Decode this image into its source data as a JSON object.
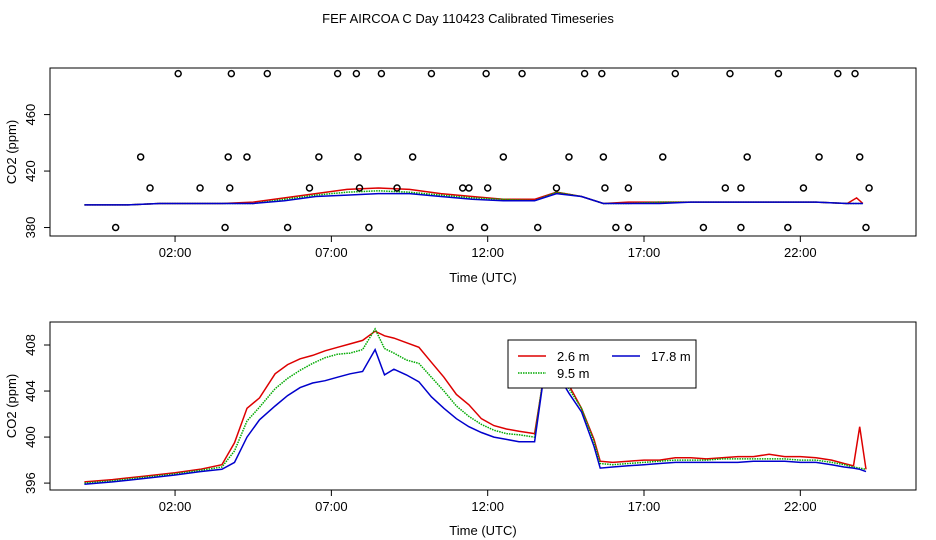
{
  "title": "FEF AIRCOA C  Day 110423  Calibrated Timeseries",
  "chart_data": [
    {
      "type": "scatter+line",
      "xlabel": "Time (UTC)",
      "ylabel": "CO2 (ppm)",
      "xlim": [
        -2.0,
        25.7
      ],
      "ylim": [
        374,
        493
      ],
      "x_ticks": [
        2,
        7,
        12,
        17,
        22
      ],
      "x_tick_labels": [
        "02:00",
        "07:00",
        "12:00",
        "17:00",
        "22:00"
      ],
      "y_ticks": [
        380,
        420,
        460
      ],
      "y_tick_labels": [
        "380",
        "420",
        "460"
      ],
      "grid": false,
      "series": [
        {
          "color": "#dd0000",
          "x": [
            -0.9,
            0.5,
            1.5,
            2.5,
            3.5,
            4.5,
            5.5,
            6.5,
            7.5,
            8.5,
            9.5,
            10.5,
            11.5,
            12.5,
            13.5,
            14.2,
            15,
            15.7,
            16.5,
            17.5,
            18.5,
            19.5,
            20.5,
            21.5,
            22.5,
            23.5,
            23.8,
            24
          ],
          "y": [
            396,
            396,
            397,
            397,
            397,
            398,
            401,
            404,
            407,
            408,
            407,
            404,
            402,
            400,
            400,
            405,
            402,
            397,
            398,
            398,
            398,
            398,
            398,
            398,
            398,
            397,
            401,
            397
          ]
        },
        {
          "color": "#00aa00",
          "x": [
            -0.9,
            0.5,
            1.5,
            2.5,
            3.5,
            4.5,
            5.5,
            6.5,
            7.5,
            8.5,
            9.5,
            10.5,
            11.5,
            12.5,
            13.5,
            14.2,
            15,
            15.7,
            16.5,
            17.5,
            18.5,
            19.5,
            20.5,
            21.5,
            22.5,
            23.5,
            24
          ],
          "y": [
            396,
            396,
            397,
            397,
            397,
            397,
            400,
            403,
            405,
            406,
            405,
            403,
            401,
            400,
            399,
            405,
            402,
            397,
            397,
            398,
            398,
            398,
            398,
            398,
            398,
            397,
            397
          ]
        },
        {
          "color": "#0000cc",
          "x": [
            -0.9,
            0.5,
            1.5,
            2.5,
            3.5,
            4.5,
            5.5,
            6.5,
            7.5,
            8.5,
            9.5,
            10.5,
            11.5,
            12.5,
            13.5,
            14.2,
            15,
            15.7,
            16.5,
            17.5,
            18.5,
            19.5,
            20.5,
            21.5,
            22.5,
            23.5,
            24
          ],
          "y": [
            396,
            396,
            397,
            397,
            397,
            397,
            399,
            402,
            403,
            404,
            404,
            402,
            400,
            399,
            399,
            404,
            402,
            397,
            397,
            397,
            398,
            398,
            398,
            398,
            398,
            397,
            397
          ]
        }
      ],
      "points": {
        "x": [
          0.1,
          1.2,
          0.9,
          2.1,
          2.8,
          3.6,
          3.75,
          3.7,
          3.8,
          4.3,
          4.95,
          5.6,
          6.6,
          6.3,
          7.2,
          7.8,
          7.9,
          7.85,
          8.6,
          8.2,
          9.1,
          9.6,
          10.2,
          10.8,
          11.2,
          11.4,
          11.9,
          12,
          11.95,
          13.1,
          12.5,
          13.6,
          14.2,
          14.6,
          15.1,
          15.65,
          15.7,
          15.75,
          16.1,
          16.5,
          16.5,
          17.6,
          18,
          18.9,
          19.6,
          20.1,
          19.75,
          20.3,
          20.1,
          21.3,
          21.6,
          22.1,
          22.6,
          23.2,
          23.75,
          24.1,
          23.9,
          24.2
        ],
        "y": [
          380,
          408,
          430,
          489,
          408,
          380,
          408,
          430,
          489,
          430,
          489,
          380,
          430,
          408,
          489,
          489,
          408,
          430,
          489,
          380,
          408,
          430,
          489,
          380,
          408,
          408,
          380,
          408,
          489,
          489,
          430,
          380,
          408,
          430,
          489,
          489,
          430,
          408,
          380,
          380,
          408,
          430,
          489,
          380,
          408,
          380,
          489,
          430,
          408,
          489,
          380,
          408,
          430,
          489,
          489,
          380,
          430,
          408
        ]
      }
    },
    {
      "type": "line",
      "xlabel": "Time (UTC)",
      "ylabel": "CO2 (ppm)",
      "xlim": [
        -2.0,
        25.7
      ],
      "ylim": [
        395.4,
        410.0
      ],
      "x_ticks": [
        2,
        7,
        12,
        17,
        22
      ],
      "x_tick_labels": [
        "02:00",
        "07:00",
        "12:00",
        "17:00",
        "22:00"
      ],
      "y_ticks": [
        396,
        400,
        404,
        408
      ],
      "y_tick_labels": [
        "396",
        "400",
        "404",
        "408"
      ],
      "grid": false,
      "legend_position": "top-right",
      "series": [
        {
          "name": "2.6 m",
          "color": "#dd0000",
          "x": [
            -0.9,
            0,
            1,
            2,
            2.8,
            3.5,
            3.9,
            4.3,
            4.7,
            5.2,
            5.6,
            6,
            6.4,
            6.8,
            7.2,
            7.6,
            8,
            8.4,
            8.7,
            9,
            9.4,
            9.8,
            10.2,
            10.6,
            11,
            11.4,
            11.8,
            12.2,
            12.6,
            13,
            13.5,
            13.8,
            14.2,
            14.6,
            15,
            15.4,
            15.6,
            16,
            16.5,
            17,
            17.5,
            18,
            18.5,
            19,
            19.5,
            20,
            20.5,
            21,
            21.5,
            22,
            22.5,
            23,
            23.4,
            23.7,
            23.9,
            24.1
          ],
          "y": [
            396.1,
            396.3,
            396.6,
            396.9,
            397.2,
            397.6,
            399.5,
            402.5,
            403.4,
            405.5,
            406.3,
            406.8,
            407.1,
            407.5,
            407.8,
            408.1,
            408.4,
            409.2,
            408.8,
            408.6,
            408.2,
            407.8,
            406.5,
            405.2,
            403.7,
            402.8,
            401.6,
            401,
            400.7,
            400.5,
            400.3,
            405.4,
            405.8,
            404.5,
            402.5,
            399.8,
            397.9,
            397.8,
            397.9,
            398,
            398,
            398.2,
            398.2,
            398.1,
            398.2,
            398.3,
            398.3,
            398.5,
            398.3,
            398.3,
            398.2,
            398,
            397.7,
            397.5,
            400.9,
            397.2
          ]
        },
        {
          "name": "9.5 m",
          "color": "#00aa00",
          "x": [
            -0.9,
            0,
            1,
            2,
            2.8,
            3.5,
            3.9,
            4.3,
            4.7,
            5.2,
            5.6,
            6,
            6.4,
            6.8,
            7.2,
            7.6,
            8,
            8.4,
            8.7,
            9,
            9.4,
            9.8,
            10.2,
            10.6,
            11,
            11.4,
            11.8,
            12.2,
            12.6,
            13,
            13.5,
            13.8,
            14.2,
            14.6,
            15,
            15.4,
            15.6,
            16,
            16.5,
            17,
            17.5,
            18,
            18.5,
            19,
            19.5,
            20,
            20.5,
            21,
            21.5,
            22,
            22.5,
            23,
            23.4,
            23.7,
            23.9,
            24.1
          ],
          "y": [
            396,
            396.2,
            396.5,
            396.8,
            397.1,
            397.4,
            398.8,
            401.4,
            402.6,
            404.2,
            405.1,
            405.8,
            406.4,
            406.9,
            407.2,
            407.3,
            407.6,
            409.4,
            407.7,
            407.3,
            406.7,
            406.4,
            405.2,
            404,
            402.7,
            401.8,
            401.1,
            400.6,
            400.3,
            400.2,
            400,
            405.6,
            405.6,
            404.2,
            402.5,
            399.6,
            397.7,
            397.6,
            397.7,
            397.8,
            397.9,
            398,
            398,
            398,
            398.1,
            398.1,
            398.1,
            398.1,
            398.1,
            398,
            398,
            397.8,
            397.6,
            397.4,
            397.3,
            397.2
          ]
        },
        {
          "name": "17.8 m",
          "color": "#0000cc",
          "x": [
            -0.9,
            0,
            1,
            2,
            2.8,
            3.5,
            3.9,
            4.3,
            4.7,
            5.2,
            5.6,
            6,
            6.4,
            6.8,
            7.2,
            7.6,
            8,
            8.4,
            8.7,
            9,
            9.4,
            9.8,
            10.2,
            10.6,
            11,
            11.4,
            11.8,
            12.2,
            12.6,
            13,
            13.5,
            13.8,
            14.2,
            14.6,
            15,
            15.4,
            15.6,
            16,
            16.5,
            17,
            17.5,
            18,
            18.5,
            19,
            19.5,
            20,
            20.5,
            21,
            21.5,
            22,
            22.5,
            23,
            23.4,
            23.7,
            23.9,
            24.1
          ],
          "y": [
            395.9,
            396.1,
            396.4,
            396.7,
            397,
            397.2,
            397.8,
            400,
            401.5,
            402.7,
            403.6,
            404.3,
            404.7,
            404.9,
            405.2,
            405.5,
            405.7,
            407.6,
            405.4,
            405.9,
            405.4,
            404.8,
            403.5,
            402.5,
            401.6,
            400.9,
            400.4,
            400,
            399.8,
            399.6,
            399.6,
            405.4,
            405.6,
            403.8,
            402.2,
            399.2,
            397.3,
            397.4,
            397.5,
            397.6,
            397.7,
            397.8,
            397.8,
            397.8,
            397.8,
            397.8,
            397.9,
            397.9,
            397.9,
            397.8,
            397.8,
            397.6,
            397.4,
            397.3,
            397.2,
            397
          ]
        }
      ]
    }
  ]
}
